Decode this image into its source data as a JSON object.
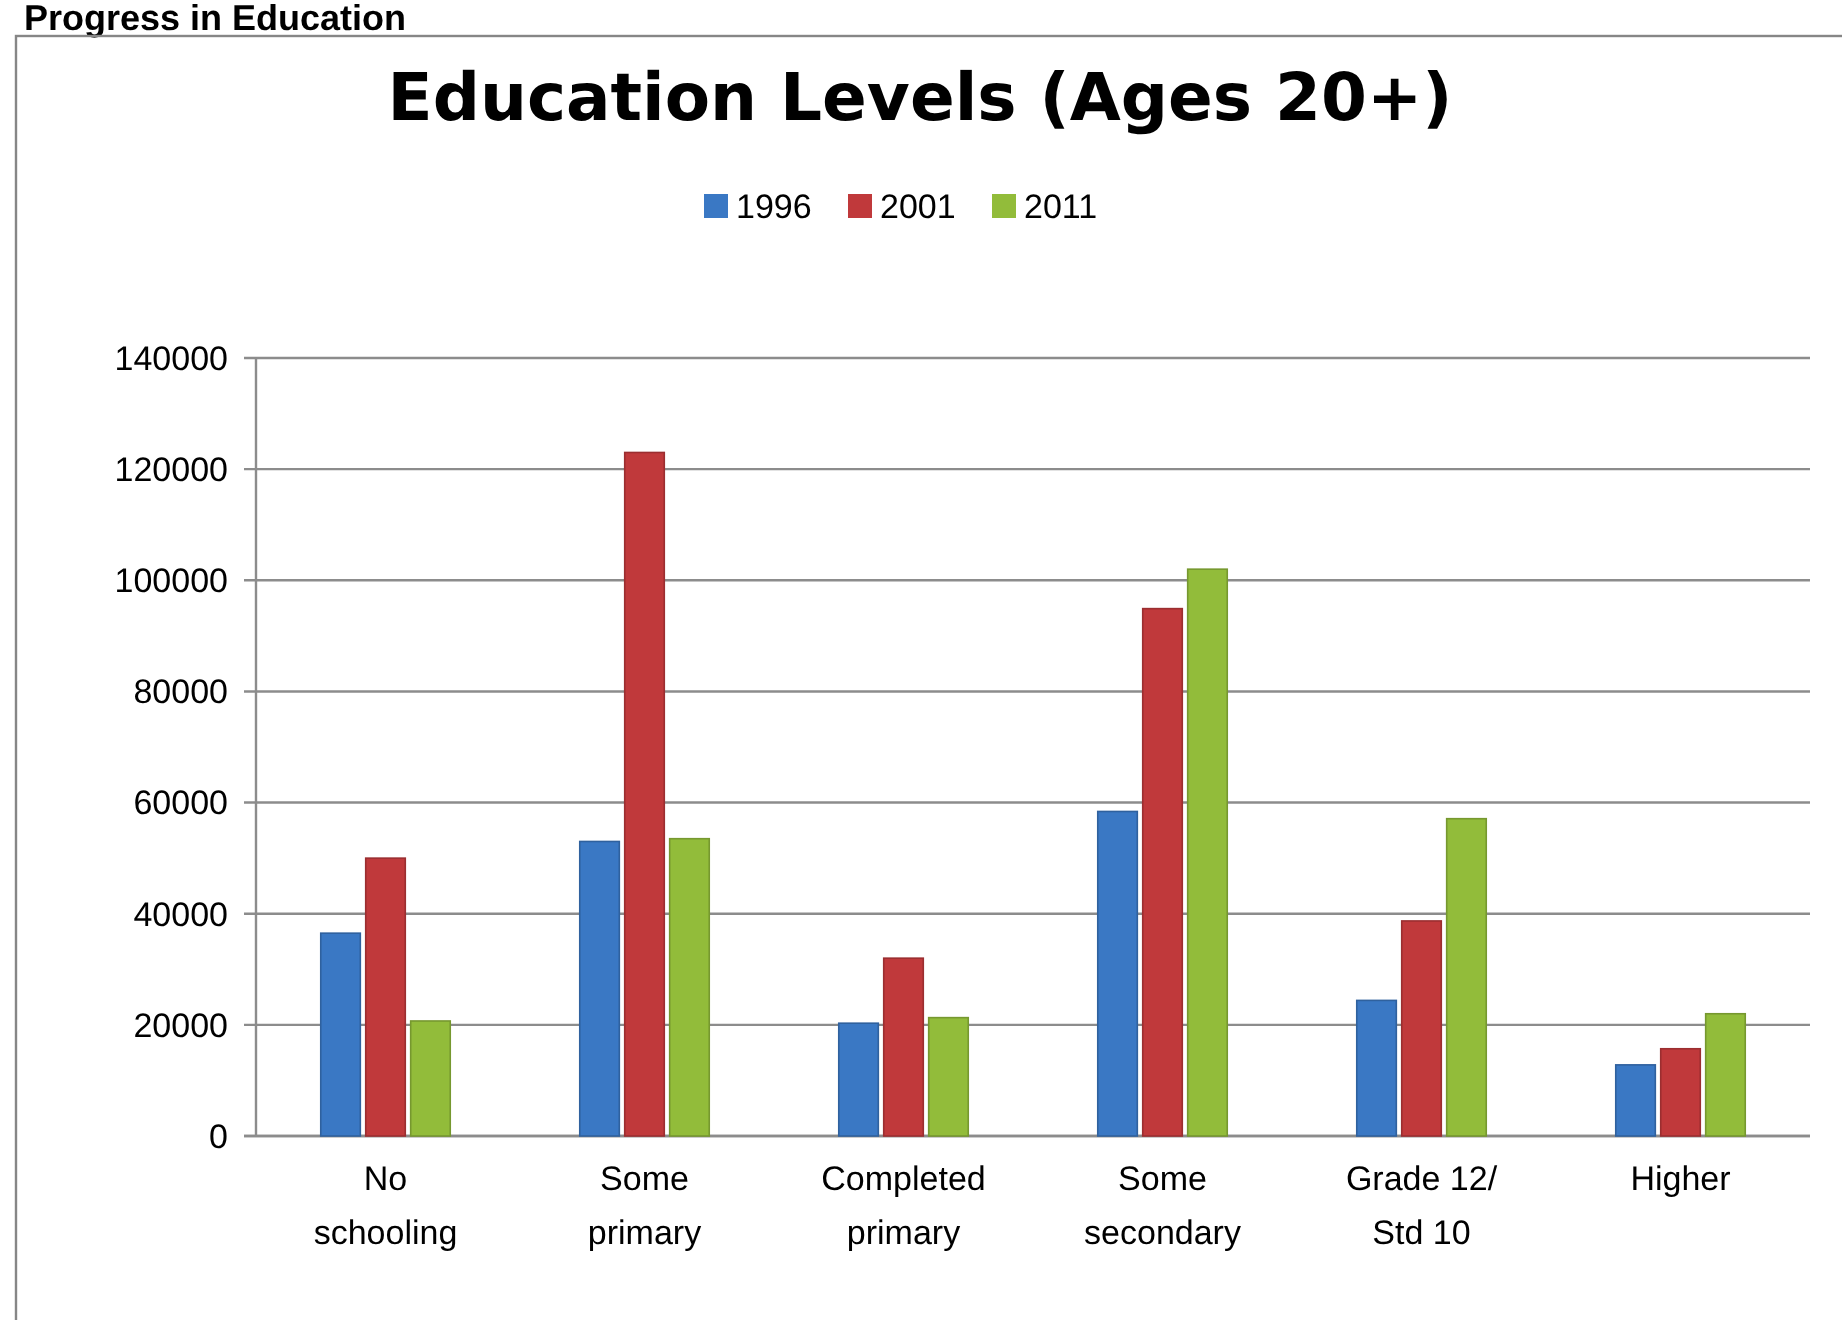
{
  "chart_data": {
    "type": "bar",
    "title": "Education Levels (Ages 20+)",
    "annotations": [
      "Progress in Education"
    ],
    "categories": [
      "No schooling",
      "Some primary",
      "Completed primary",
      "Some secondary",
      "Grade 12/ Std 10",
      "Higher"
    ],
    "series": [
      {
        "name": "1996",
        "color": "#3a78c4",
        "values": [
          36500,
          53000,
          20300,
          58400,
          24400,
          12800
        ]
      },
      {
        "name": "2001",
        "color": "#c0393b",
        "values": [
          50000,
          123000,
          32000,
          94900,
          38700,
          15700
        ]
      },
      {
        "name": "2011",
        "color": "#92bc3a",
        "values": [
          20700,
          53500,
          21300,
          102000,
          57100,
          22000
        ]
      }
    ],
    "ylim": [
      0,
      140000
    ],
    "yticks": [
      0,
      20000,
      40000,
      60000,
      80000,
      100000,
      120000,
      140000
    ],
    "grid": "y",
    "legend": "top"
  }
}
